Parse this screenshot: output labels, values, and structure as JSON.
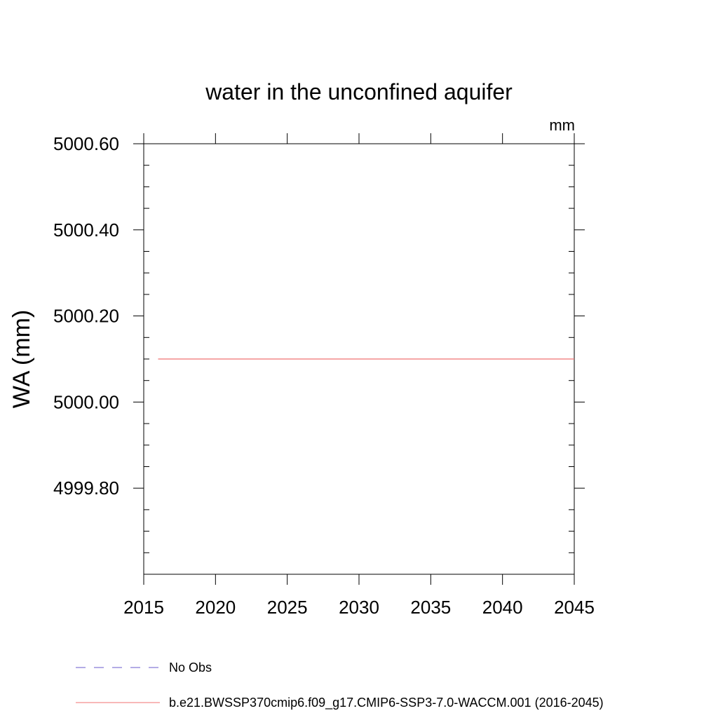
{
  "chart_data": {
    "type": "line",
    "title": "water in the unconfined aquifer",
    "units": "mm",
    "ylabel": "WA  (mm)",
    "xlabel": "",
    "xlim": [
      2015,
      2045
    ],
    "ylim": [
      4999.6,
      5000.6
    ],
    "x_ticks": [
      2015,
      2020,
      2025,
      2030,
      2035,
      2040,
      2045
    ],
    "x_tick_labels": [
      "2015",
      "2020",
      "2025",
      "2030",
      "2035",
      "2040",
      "2045"
    ],
    "x_minor_ticks": [],
    "y_ticks": [
      4999.8,
      5000.0,
      5000.2,
      5000.4,
      5000.6
    ],
    "y_tick_labels": [
      "4999.80",
      "5000.00",
      "5000.20",
      "5000.40",
      "5000.60"
    ],
    "y_minor_step": 0.05,
    "grid": false,
    "legend_position": "bottom",
    "series": [
      {
        "name": "No Obs",
        "color": "#6a5acd",
        "style": "dashed",
        "x": [],
        "y": []
      },
      {
        "name": "b.e21.BWSSP370cmip6.f09_g17.CMIP6-SSP3-7.0-WACCM.001 (2016-2045)",
        "color": "#f07070",
        "style": "solid",
        "x": [
          2016,
          2045
        ],
        "y": [
          5000.1,
          5000.1
        ]
      }
    ]
  }
}
